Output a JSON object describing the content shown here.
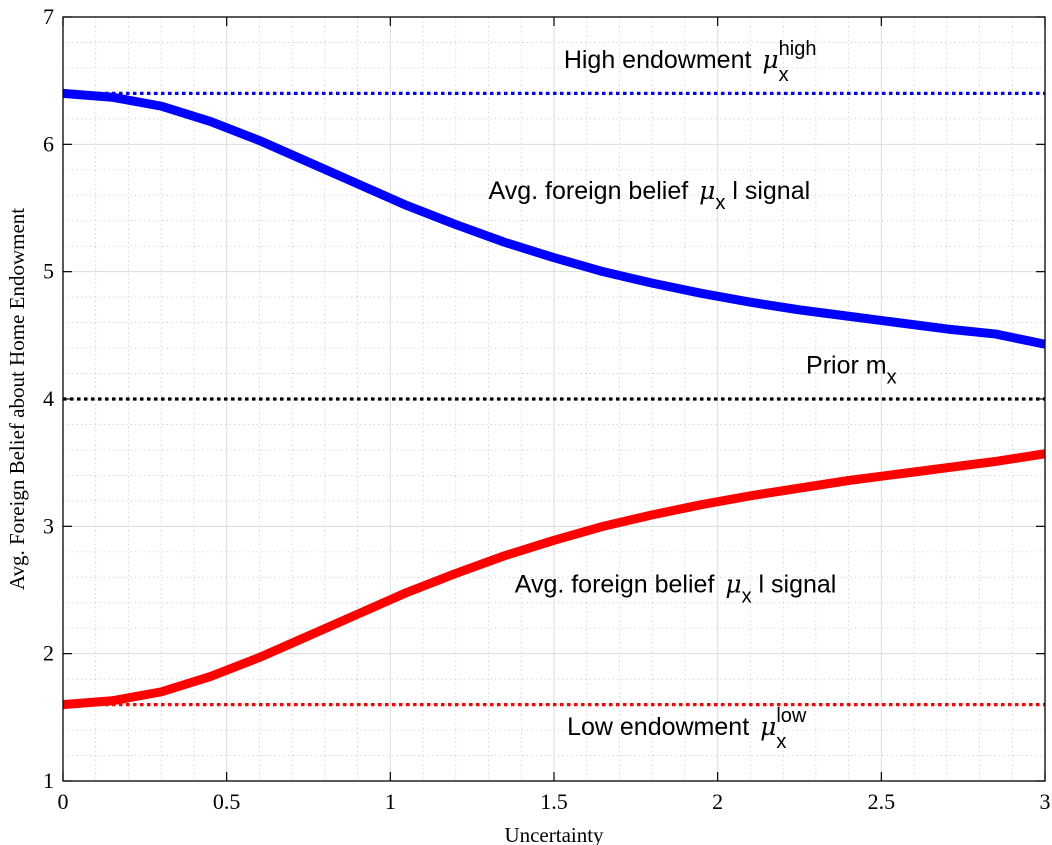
{
  "chart_data": {
    "type": "line",
    "title": "",
    "xlabel": "Uncertainty",
    "ylabel": "Avg. Foreign Belief about Home Endowment",
    "xlim": [
      0,
      3
    ],
    "ylim": [
      1,
      7
    ],
    "xticks": [
      0,
      0.5,
      1,
      1.5,
      2,
      2.5,
      3
    ],
    "xtick_labels": [
      "0",
      "0.5",
      "1",
      "1.5",
      "2",
      "2.5",
      "3"
    ],
    "yticks": [
      1,
      2,
      3,
      4,
      5,
      6,
      7
    ],
    "ytick_labels": [
      "1",
      "2",
      "3",
      "4",
      "5",
      "6",
      "7"
    ],
    "grid": true,
    "minor_grid": true,
    "x": [
      0,
      0.15,
      0.3,
      0.45,
      0.6,
      0.75,
      0.9,
      1.05,
      1.2,
      1.35,
      1.5,
      1.65,
      1.8,
      1.95,
      2.1,
      2.25,
      2.4,
      2.55,
      2.7,
      2.85,
      3.0
    ],
    "series": [
      {
        "color": "#0000ff",
        "style": "solid",
        "values": [
          6.4,
          6.37,
          6.3,
          6.18,
          6.03,
          5.86,
          5.69,
          5.52,
          5.37,
          5.23,
          5.11,
          5.0,
          4.91,
          4.83,
          4.76,
          4.7,
          4.65,
          4.6,
          4.55,
          4.51,
          4.43
        ]
      },
      {
        "color": "#ff0000",
        "style": "solid",
        "values": [
          1.6,
          1.63,
          1.7,
          1.82,
          1.97,
          2.14,
          2.31,
          2.48,
          2.63,
          2.77,
          2.89,
          3.0,
          3.09,
          3.17,
          3.24,
          3.3,
          3.36,
          3.41,
          3.46,
          3.51,
          3.57
        ]
      },
      {
        "color": "#0000ff",
        "style": "dotted",
        "values_constant": 6.4
      },
      {
        "color": "#000000",
        "style": "dotted",
        "values_constant": 4.0
      },
      {
        "color": "#ff0000",
        "style": "dotted",
        "values_constant": 1.6
      }
    ],
    "annotations": [
      {
        "prefix": "High endowment ",
        "symbol": "μ",
        "sub": "x",
        "sup": "high",
        "suffix": "",
        "x": 1.53,
        "y": 6.6
      },
      {
        "prefix": "Avg. foreign belief ",
        "symbol": "μ",
        "sub": "x",
        "sup": "",
        "suffix": " l signal",
        "x": 1.3,
        "y": 5.57
      },
      {
        "prefix": "Prior m",
        "symbol": "",
        "sub": "x",
        "sup": "",
        "suffix": "",
        "x": 2.27,
        "y": 4.2
      },
      {
        "prefix": "Avg. foreign belief ",
        "symbol": "μ",
        "sub": "x",
        "sup": "",
        "suffix": " l signal",
        "x": 1.38,
        "y": 2.48
      },
      {
        "prefix": "Low endowment ",
        "symbol": "μ",
        "sub": "x",
        "sup": "low",
        "suffix": "",
        "x": 1.54,
        "y": 1.36
      }
    ]
  }
}
